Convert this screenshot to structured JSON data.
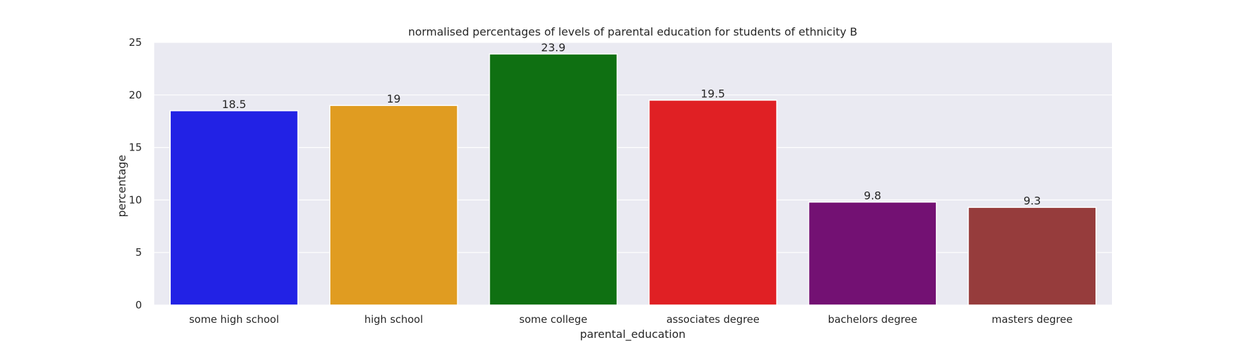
{
  "chart_data": {
    "type": "bar",
    "title": "normalised percentages of levels of parental education for students of ethnicity B",
    "xlabel": "parental_education",
    "ylabel": "percentage",
    "categories": [
      "some high school",
      "high school",
      "some college",
      "associates degree",
      "bachelors degree",
      "masters degree"
    ],
    "values": [
      18.5,
      19,
      23.9,
      19.5,
      9.8,
      9.3
    ],
    "value_labels": [
      "18.5",
      "19",
      "23.9",
      "19.5",
      "9.8",
      "9.3"
    ],
    "colors": [
      "#2222e5",
      "#e09c21",
      "#0f7012",
      "#e02024",
      "#731173",
      "#963c3c"
    ],
    "ylim": [
      0,
      25
    ],
    "yticks": [
      0,
      5,
      10,
      15,
      20,
      25
    ],
    "ytick_labels": [
      "0",
      "5",
      "10",
      "15",
      "20",
      "25"
    ],
    "grid": true,
    "plot_background": "#eaeaf2",
    "grid_color": "#ffffff"
  }
}
